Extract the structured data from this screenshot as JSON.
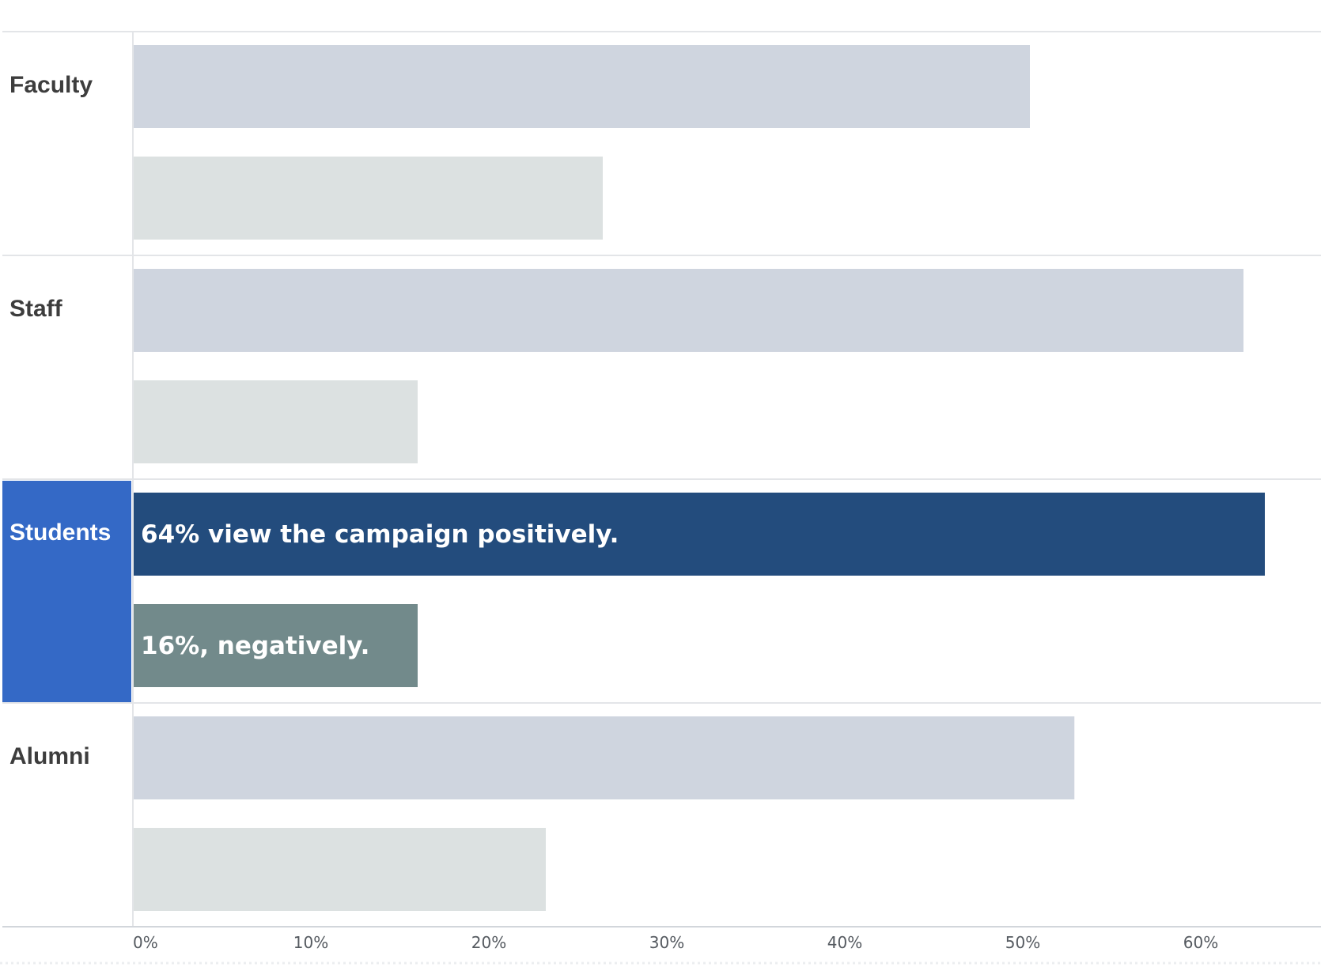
{
  "chart_data": {
    "type": "bar",
    "orientation": "horizontal",
    "categories": [
      "Faculty",
      "Staff",
      "Students",
      "Alumni"
    ],
    "highlighted_category": "Students",
    "series": [
      {
        "values": [
          50.4,
          62.4,
          63.6,
          52.9
        ]
      },
      {
        "values": [
          26.4,
          16.0,
          16.0,
          23.2
        ]
      }
    ],
    "annotations": [
      {
        "category": "Students",
        "series_index": 0,
        "text": "64% view the campaign positively."
      },
      {
        "category": "Students",
        "series_index": 1,
        "text": "16%, negatively."
      }
    ],
    "x_ticks": [
      "0%",
      "10%",
      "20%",
      "30%",
      "40%",
      "50%",
      "60%"
    ],
    "xlim": [
      0,
      66
    ],
    "title": "",
    "xlabel": "",
    "ylabel": "",
    "grid": false,
    "legend": "none"
  },
  "colors": {
    "positive_muted": "#cfd5df",
    "negative_muted": "#dce1e1",
    "positive_highlight": "#234c7d",
    "negative_highlight": "#728a8b",
    "highlight_label_bg": "#3469c6",
    "label_text": "#3d3d3d",
    "highlight_label_text": "#ffffff",
    "separator": "#e3e5e8"
  }
}
